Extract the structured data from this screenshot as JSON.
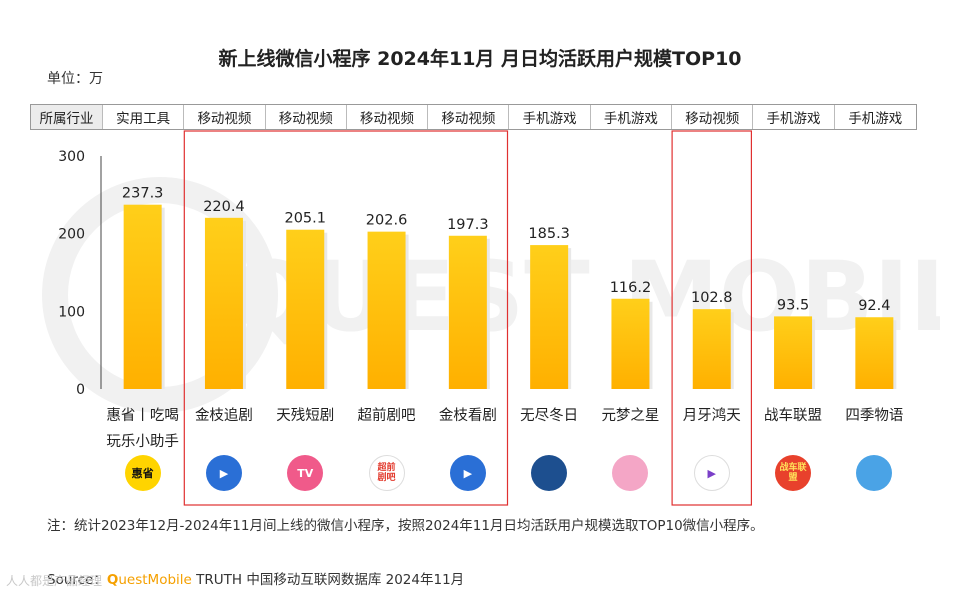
{
  "title": "新上线微信小程序 2024年11月 月日均活跃用户规模TOP10",
  "unit_label": "单位：万",
  "industry_header": "所属行业",
  "industries": [
    "实用工具",
    "移动视频",
    "移动视频",
    "移动视频",
    "移动视频",
    "手机游戏",
    "手机游戏",
    "移动视频",
    "手机游戏",
    "手机游戏"
  ],
  "chart_data": {
    "type": "bar",
    "title": "新上线微信小程序 2024年11月 月日均活跃用户规模TOP10",
    "ylabel": "单位：万",
    "ylim": [
      0,
      300
    ],
    "yticks": [
      0,
      100,
      200,
      300
    ],
    "categories": [
      "惠省丨吃喝玩乐小助手",
      "金枝追剧",
      "天残短剧",
      "超前剧吧",
      "金枝看剧",
      "无尽冬日",
      "元梦之星",
      "月牙鸿天",
      "战车联盟",
      "四季物语"
    ],
    "category_lines": [
      [
        "惠省丨吃喝",
        "玩乐小助手"
      ],
      [
        "金枝追剧"
      ],
      [
        "天残短剧"
      ],
      [
        "超前剧吧"
      ],
      [
        "金枝看剧"
      ],
      [
        "无尽冬日"
      ],
      [
        "元梦之星"
      ],
      [
        "月牙鸿天"
      ],
      [
        "战车联盟"
      ],
      [
        "四季物语"
      ]
    ],
    "values": [
      237.3,
      220.4,
      205.1,
      202.6,
      197.3,
      185.3,
      116.2,
      102.8,
      93.5,
      92.4
    ],
    "value_labels": [
      "237.3",
      "220.4",
      "205.1",
      "202.6",
      "197.3",
      "185.3",
      "116.2",
      "102.8",
      "93.5",
      "92.4"
    ],
    "bar_color": "#ffc20e",
    "highlight_groups": [
      [
        1,
        4
      ],
      [
        7,
        7
      ]
    ],
    "highlight_color": "#e03030"
  },
  "icons": [
    {
      "name": "huisheng-app-icon",
      "text": "惠省",
      "bg": "#ffd400",
      "fg": "#111111"
    },
    {
      "name": "jinzhi-zhuiju-app-icon",
      "text": "▶",
      "bg": "#2a6fd6",
      "fg": "#ffffff"
    },
    {
      "name": "tiancan-duanju-app-icon",
      "text": "TV",
      "bg": "#f05a8a",
      "fg": "#ffffff"
    },
    {
      "name": "chaoqian-juba-app-icon",
      "text": "超前剧吧",
      "bg": "#ffffff",
      "fg": "#e23b2e"
    },
    {
      "name": "jinzhi-kanju-app-icon",
      "text": "▶",
      "bg": "#2a6fd6",
      "fg": "#ffffff"
    },
    {
      "name": "wujin-dongri-app-icon",
      "text": "",
      "bg": "#1d4f8f",
      "fg": "#ffffff"
    },
    {
      "name": "yuanmeng-zhixing-app-icon",
      "text": "",
      "bg": "#f4a6c6",
      "fg": "#ffffff"
    },
    {
      "name": "yueya-hongtian-app-icon",
      "text": "▶",
      "bg": "#ffffff",
      "fg": "#7a3fc8"
    },
    {
      "name": "zhanche-lianmeng-app-icon",
      "text": "战车联盟",
      "bg": "#e8412c",
      "fg": "#ffe25a"
    },
    {
      "name": "siji-wuyu-app-icon",
      "text": "",
      "bg": "#4aa3e6",
      "fg": "#ffffff"
    }
  ],
  "note": "注：统计2023年12月-2024年11月间上线的微信小程序，按照2024年11月日均活跃用户规模选取TOP10微信小程序。",
  "source": {
    "prefix": "Source：",
    "brand_q": "Q",
    "brand_rest": "uestMobile",
    "suffix": " TRUTH 中国移动互联网数据库 2024年11月"
  },
  "watermark_text": "QUEST MOBILE",
  "corner_logo": "人人都是产品经理"
}
